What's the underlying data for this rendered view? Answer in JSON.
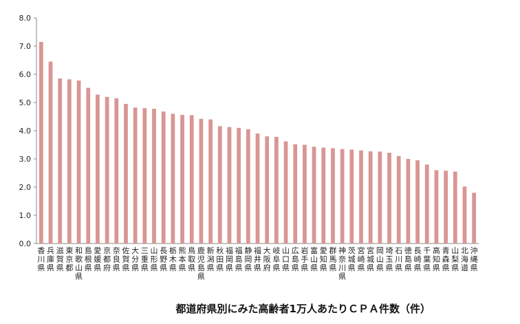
{
  "chart_data": {
    "type": "bar",
    "title": "都道府県別にみた高齢者1万人あたりＣＰＡ件数（件）",
    "xlabel": "",
    "ylabel": "",
    "ylim": [
      0,
      8
    ],
    "y_ticks": [
      "0.0",
      "1.0",
      "2.0",
      "3.0",
      "4.0",
      "5.0",
      "6.0",
      "7.0",
      "8.0"
    ],
    "grid": false,
    "bar_color": "#d99694",
    "categories": [
      "香川県",
      "兵庫県",
      "滋賀県",
      "東京都",
      "和歌山県",
      "島根県",
      "愛媛県",
      "京都府",
      "奈良県",
      "佐賀県",
      "大分県",
      "三重県",
      "山形県",
      "長野県",
      "栃木県",
      "熊本県",
      "鳥取県",
      "鹿児島県",
      "新潟県",
      "秋田県",
      "福岡県",
      "福島県",
      "静岡県",
      "福井県",
      "大阪府",
      "岐阜県",
      "山口県",
      "広島県",
      "岩手県",
      "富山県",
      "愛知県",
      "群馬県",
      "神奈川県",
      "茨城県",
      "宮崎県",
      "宮城県",
      "岡山県",
      "埼玉県",
      "石川県",
      "徳島県",
      "長崎県",
      "千葉県",
      "高知県",
      "青森県",
      "山梨県",
      "北海道",
      "沖縄県"
    ],
    "values": [
      7.15,
      6.45,
      5.85,
      5.82,
      5.78,
      5.52,
      5.28,
      5.2,
      5.15,
      4.95,
      4.82,
      4.8,
      4.78,
      4.68,
      4.6,
      4.56,
      4.55,
      4.42,
      4.4,
      4.16,
      4.13,
      4.1,
      4.05,
      3.9,
      3.8,
      3.78,
      3.62,
      3.52,
      3.5,
      3.43,
      3.4,
      3.38,
      3.35,
      3.33,
      3.3,
      3.27,
      3.26,
      3.22,
      3.1,
      3.0,
      2.95,
      2.8,
      2.6,
      2.58,
      2.55,
      2.02,
      1.8
    ]
  }
}
